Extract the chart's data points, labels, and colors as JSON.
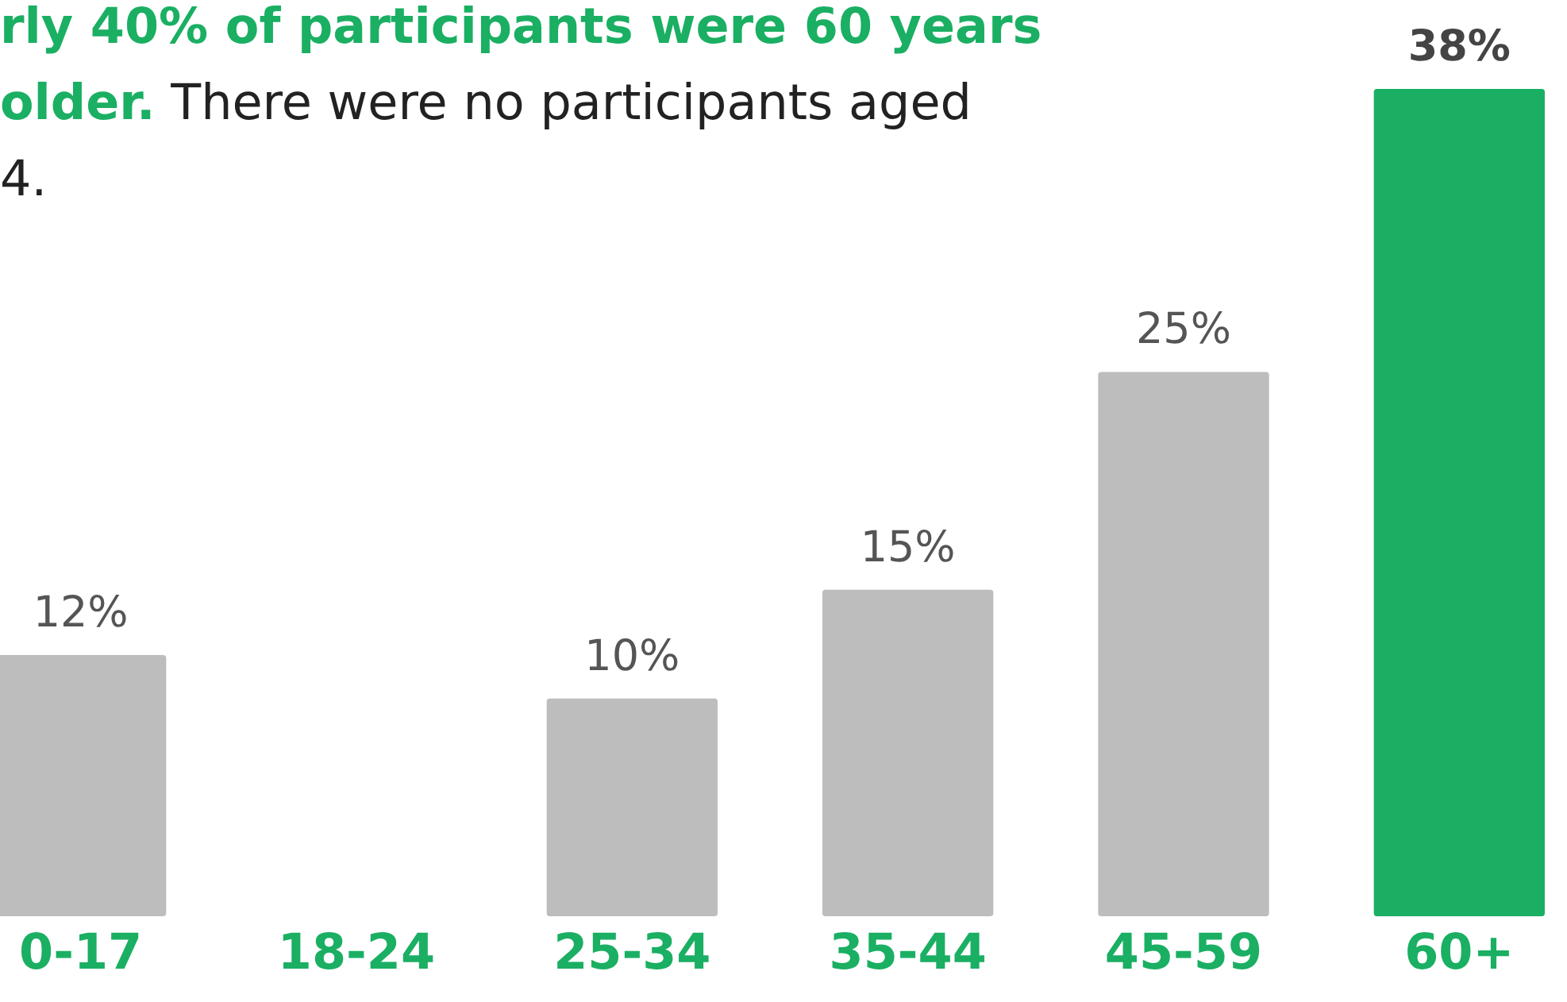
{
  "chart_data": {
    "type": "bar",
    "title": "rly 40% of participants were 60 years older.",
    "subtitle": "There were no participants aged 4.",
    "categories": [
      "0-17",
      "18-24",
      "25-34",
      "35-44",
      "45-59",
      "60+"
    ],
    "values": [
      12,
      null,
      10,
      15,
      25,
      38
    ],
    "value_labels": [
      "12%",
      null,
      "10%",
      "15%",
      "25%",
      "38%"
    ],
    "colors": [
      "#bdbdbd",
      "#bdbdbd",
      "#bdbdbd",
      "#bdbdbd",
      "#bdbdbd",
      "#1aaf63"
    ]
  }
}
